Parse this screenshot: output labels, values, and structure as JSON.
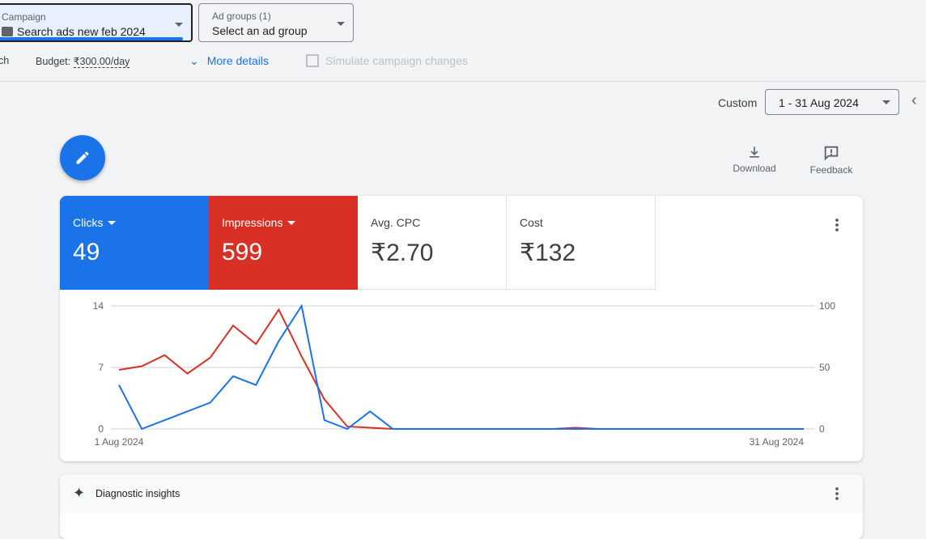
{
  "header": {
    "campaign": {
      "label": "Campaign",
      "value": "Search ads new feb 2024"
    },
    "ad_groups": {
      "label": "Ad groups (1)",
      "value": "Select an ad group"
    },
    "type_fragment": "ch",
    "budget_label": "Budget:",
    "budget_value": "₹300.00/day",
    "more_details": "More details",
    "simulate": "Simulate campaign changes"
  },
  "date": {
    "range_type": "Custom",
    "range": "1 - 31 Aug 2024"
  },
  "tools": {
    "download": "Download",
    "feedback": "Feedback"
  },
  "metrics": [
    {
      "label": "Clicks",
      "value": "49",
      "color": "#1a73e8"
    },
    {
      "label": "Impressions",
      "value": "599",
      "color": "#d93025"
    },
    {
      "label": "Avg. CPC",
      "value": "₹2.70"
    },
    {
      "label": "Cost",
      "value": "₹132"
    }
  ],
  "chart_data": {
    "type": "line",
    "x_start_label": "1 Aug 2024",
    "x_end_label": "31 Aug 2024",
    "y_left_ticks": [
      "14",
      "7",
      "0"
    ],
    "y_right_ticks": [
      "100",
      "50",
      "0"
    ],
    "ylim_left": [
      0,
      14
    ],
    "ylim_right": [
      0,
      100
    ],
    "grid": true,
    "x": [
      1,
      2,
      3,
      4,
      5,
      6,
      7,
      8,
      9,
      10,
      11,
      12,
      13,
      14,
      15,
      16,
      17,
      18,
      19,
      20,
      21,
      22,
      23,
      24,
      25,
      26,
      27,
      28,
      29,
      30,
      31
    ],
    "series": [
      {
        "name": "Clicks",
        "axis": "left",
        "color": "#1a73e8",
        "values": [
          5,
          0,
          1,
          2,
          3,
          6,
          5,
          10,
          14,
          1,
          0,
          2,
          0,
          0,
          0,
          0,
          0,
          0,
          0,
          0,
          0,
          0,
          0,
          0,
          0,
          0,
          0,
          0,
          0,
          0,
          0
        ]
      },
      {
        "name": "Impressions",
        "axis": "right",
        "color": "#d93025",
        "values": [
          48,
          51,
          60,
          45,
          58,
          84,
          69,
          97,
          59,
          24,
          2,
          1,
          0,
          0,
          0,
          0,
          0,
          0,
          0,
          0,
          1,
          0,
          0,
          0,
          0,
          0,
          0,
          0,
          0,
          0,
          0
        ]
      }
    ]
  },
  "insights": {
    "title": "Diagnostic insights"
  }
}
